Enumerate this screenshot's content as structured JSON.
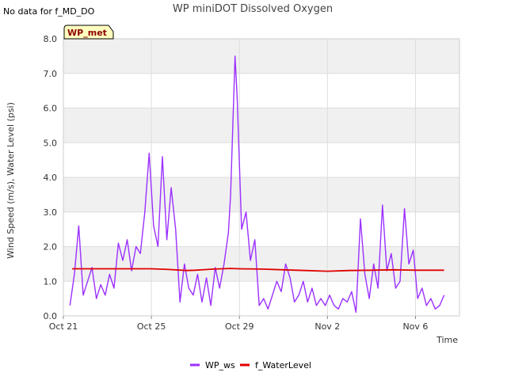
{
  "notice": "No data for f_MD_DO",
  "badge": {
    "label": "WP_met",
    "fill": "#ffffc0",
    "text_color": "#8b0000"
  },
  "colors": {
    "band": "#f0f0f0",
    "grid": "#dddddd",
    "axis": "#cccccc"
  },
  "chart_data": {
    "type": "line",
    "title": "WP miniDOT Dissolved Oxygen",
    "xlabel": "Time",
    "ylabel": "Wind Speed (m/s), Water Level (psi)",
    "xlim": [
      0,
      18
    ],
    "ylim": [
      0,
      8
    ],
    "x_ticks": [
      {
        "value": 0,
        "label": "Oct 21"
      },
      {
        "value": 4,
        "label": "Oct 25"
      },
      {
        "value": 8,
        "label": "Oct 29"
      },
      {
        "value": 12,
        "label": "Nov 2"
      },
      {
        "value": 16,
        "label": "Nov 6"
      }
    ],
    "y_ticks": [
      0,
      1,
      2,
      3,
      4,
      5,
      6,
      7,
      8
    ],
    "y_tick_labels": [
      "0.0",
      "1.0",
      "2.0",
      "3.0",
      "4.0",
      "5.0",
      "6.0",
      "7.0",
      "8.0"
    ],
    "grid": true,
    "legend_position": "bottom",
    "series": [
      {
        "name": "WP_ws",
        "color": "#9b30ff",
        "x": [
          0.3,
          0.5,
          0.7,
          0.9,
          1.1,
          1.3,
          1.5,
          1.7,
          1.9,
          2.1,
          2.3,
          2.5,
          2.7,
          2.9,
          3.1,
          3.3,
          3.5,
          3.7,
          3.9,
          4.1,
          4.3,
          4.5,
          4.7,
          4.9,
          5.1,
          5.3,
          5.5,
          5.7,
          5.9,
          6.1,
          6.3,
          6.5,
          6.7,
          6.9,
          7.1,
          7.3,
          7.5,
          7.6,
          7.7,
          7.8,
          7.9,
          8.1,
          8.3,
          8.5,
          8.7,
          8.9,
          9.1,
          9.3,
          9.5,
          9.7,
          9.9,
          10.1,
          10.3,
          10.5,
          10.7,
          10.9,
          11.1,
          11.3,
          11.5,
          11.7,
          11.9,
          12.1,
          12.3,
          12.5,
          12.7,
          12.9,
          13.1,
          13.3,
          13.5,
          13.7,
          13.9,
          14.1,
          14.3,
          14.5,
          14.7,
          14.9,
          15.1,
          15.3,
          15.5,
          15.7,
          15.9,
          16.1,
          16.3,
          16.5,
          16.7,
          16.9,
          17.1,
          17.3
        ],
        "values": [
          0.3,
          1.2,
          2.6,
          0.6,
          1.0,
          1.4,
          0.5,
          0.9,
          0.6,
          1.2,
          0.8,
          2.1,
          1.6,
          2.2,
          1.3,
          2.0,
          1.8,
          3.0,
          4.7,
          2.6,
          2.0,
          4.6,
          2.2,
          3.7,
          2.5,
          0.4,
          1.5,
          0.8,
          0.6,
          1.2,
          0.4,
          1.1,
          0.3,
          1.4,
          0.8,
          1.5,
          2.4,
          3.5,
          5.5,
          7.5,
          6.3,
          2.5,
          3.0,
          1.6,
          2.2,
          0.3,
          0.5,
          0.2,
          0.6,
          1.0,
          0.7,
          1.5,
          1.1,
          0.4,
          0.6,
          1.0,
          0.4,
          0.8,
          0.3,
          0.5,
          0.3,
          0.6,
          0.3,
          0.2,
          0.5,
          0.4,
          0.7,
          0.1,
          2.8,
          1.2,
          0.5,
          1.5,
          0.8,
          3.2,
          1.3,
          1.8,
          0.8,
          1.0,
          3.1,
          1.5,
          1.9,
          0.5,
          0.8,
          0.3,
          0.5,
          0.2,
          0.3,
          0.6
        ],
        "line_width": 1.4
      },
      {
        "name": "f_WaterLevel",
        "color": "#e00000",
        "x": [
          0.4,
          2.0,
          4.0,
          4.8,
          5.6,
          6.0,
          6.8,
          7.6,
          8.0,
          9.0,
          10.0,
          11.0,
          12.0,
          13.0,
          14.0,
          15.0,
          16.0,
          17.3
        ],
        "values": [
          1.36,
          1.36,
          1.36,
          1.34,
          1.31,
          1.32,
          1.35,
          1.37,
          1.36,
          1.35,
          1.33,
          1.31,
          1.29,
          1.31,
          1.32,
          1.33,
          1.32,
          1.32
        ],
        "line_width": 1.8
      }
    ]
  }
}
